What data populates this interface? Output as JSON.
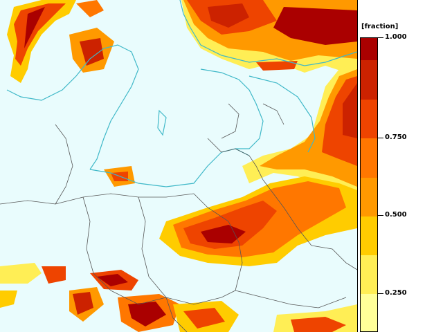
{
  "legend": {
    "title": "[fraction]",
    "min": 0.125,
    "max": 1.0,
    "ticks": [
      {
        "value": 1.0,
        "label": "1.000"
      },
      {
        "value": 0.75,
        "label": "0.750"
      },
      {
        "value": 0.5,
        "label": "0.500"
      },
      {
        "value": 0.25,
        "label": "0.250"
      }
    ],
    "bins": [
      {
        "from": 0.125,
        "to": 0.25,
        "color": "#ffff99"
      },
      {
        "from": 0.25,
        "to": 0.375,
        "color": "#ffee55"
      },
      {
        "from": 0.375,
        "to": 0.5,
        "color": "#ffcc00"
      },
      {
        "from": 0.5,
        "to": 0.625,
        "color": "#ff9900"
      },
      {
        "from": 0.625,
        "to": 0.75,
        "color": "#ff7700"
      },
      {
        "from": 0.75,
        "to": 0.875,
        "color": "#ee4400"
      },
      {
        "from": 0.875,
        "to": 1.0,
        "color": "#cc2200"
      },
      {
        "from": 1.0,
        "to": 1.0,
        "color": "#aa0000"
      }
    ]
  },
  "colors": {
    "background": "#e9fcfd",
    "coastline": "#3fb8c8",
    "border": "#555555",
    "high": "#aa0000",
    "mid": "#ff7700",
    "low": "#ffee55"
  }
}
